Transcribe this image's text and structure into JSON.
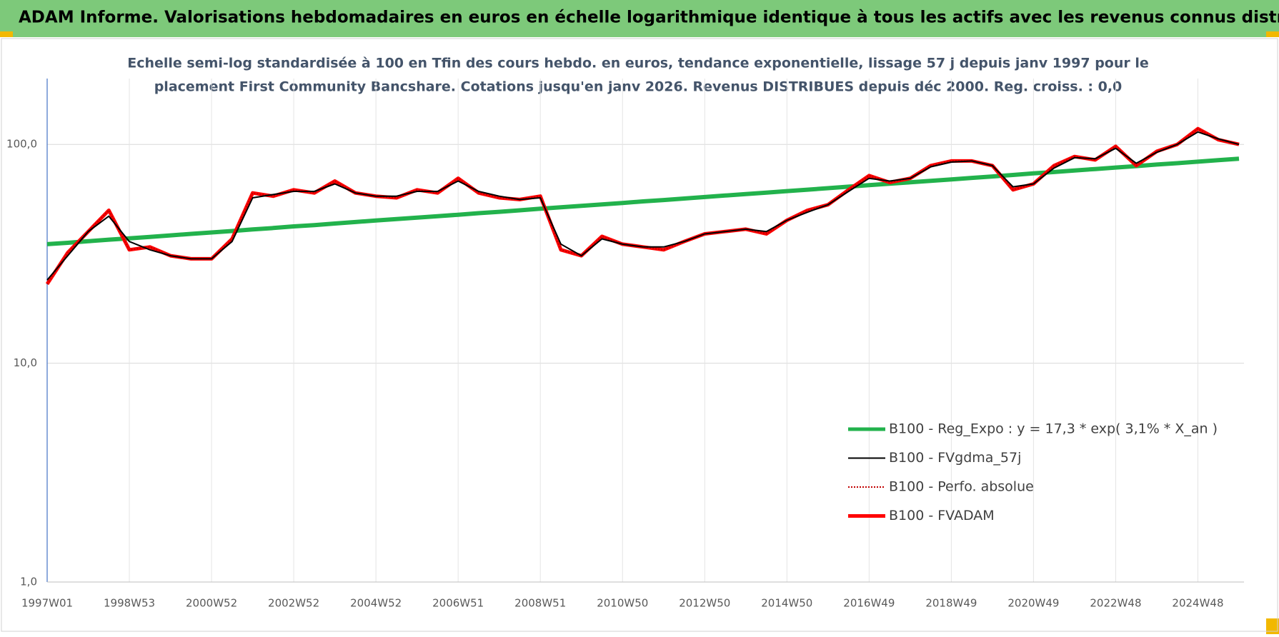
{
  "chart_data": {
    "type": "line",
    "title": "ADAM Informe. Valorisations hebdomadaires en euros en échelle logarithmique identique à tous les actifs avec les revenus connus distribués",
    "subtitle": [
      "Echelle semi-log standardisée à 100 en Tfin des cours hebdo. en euros, tendance exponentielle, lissage 57 j depuis janv 1997 pour le",
      "placement First Community Bancshare. Cotations jusqu'en janv 2026. Revenus DISTRIBUES depuis déc 2000. Reg. croiss. : 0,0"
    ],
    "categories": [
      "1997W01",
      null,
      null,
      null,
      "1998W53",
      null,
      null,
      null,
      "2000W52",
      null,
      null,
      null,
      "2002W52",
      null,
      null,
      null,
      "2004W52",
      null,
      null,
      null,
      "2006W51",
      null,
      null,
      null,
      "2008W51",
      null,
      null,
      null,
      "2010W50",
      null,
      null,
      null,
      "2012W50",
      null,
      null,
      null,
      "2014W50",
      null,
      null,
      null,
      "2016W49",
      null,
      null,
      null,
      "2018W49",
      null,
      null,
      null,
      "2020W49",
      null,
      null,
      null,
      "2022W48",
      null,
      null,
      null,
      "2024W48",
      null,
      null
    ],
    "log": true,
    "ylim": [
      1,
      200
    ],
    "yticks": [
      {
        "value": 1,
        "label": "1,0"
      },
      {
        "value": 10,
        "label": "10,0"
      },
      {
        "value": 100,
        "label": "100,0"
      }
    ],
    "grid": true,
    "legend": "bottom-right",
    "series": [
      {
        "name": "B100 - Reg_Expo : y = 17,3 * exp( 3,1% *  X_an )",
        "color": "#22b24c",
        "width": 6,
        "dash": "solid",
        "values": [
          35.0,
          35.5,
          36.1,
          36.7,
          37.2,
          37.8,
          38.4,
          39.0,
          39.6,
          40.2,
          40.9,
          41.5,
          42.2,
          42.8,
          43.5,
          44.2,
          44.9,
          45.6,
          46.3,
          47.0,
          47.7,
          48.5,
          49.2,
          50.0,
          50.8,
          51.6,
          52.4,
          53.2,
          54.0,
          54.9,
          55.7,
          56.6,
          57.5,
          58.4,
          59.3,
          60.2,
          61.2,
          62.1,
          63.1,
          64.1,
          65.1,
          66.1,
          67.1,
          68.2,
          69.2,
          70.3,
          71.4,
          72.5,
          73.7,
          74.8,
          76.0,
          77.2,
          78.4,
          79.6,
          80.9,
          82.1,
          83.4,
          84.7,
          86.0
        ]
      },
      {
        "name": "B100 - FVgdma_57j",
        "color": "#000000",
        "width": 2,
        "dash": "solid",
        "values": [
          24,
          31,
          40,
          47,
          36,
          33,
          31,
          30,
          30,
          36,
          57,
          59,
          61,
          61,
          66,
          60,
          58,
          58,
          61,
          61,
          68,
          61,
          58,
          56,
          57,
          35,
          31,
          37,
          35,
          34,
          34,
          36,
          39,
          40,
          41,
          40,
          45,
          49,
          53,
          61,
          70,
          68,
          70,
          79,
          83,
          84,
          80,
          64,
          66,
          78,
          87,
          86,
          96,
          82,
          92,
          100,
          114,
          106,
          100
        ]
      },
      {
        "name": "B100 - Perfo. absolue",
        "color": "#c00000",
        "width": 2,
        "dash": "dotted",
        "values": [
          23,
          32,
          40,
          50,
          33,
          34,
          31,
          30,
          30,
          37,
          60,
          58,
          62,
          60,
          68,
          60,
          58,
          57,
          62,
          60,
          70,
          60,
          57,
          56,
          58,
          33,
          31,
          38,
          35,
          34,
          33,
          36,
          39,
          40,
          41,
          39,
          45,
          50,
          53,
          62,
          72,
          67,
          70,
          80,
          84,
          84,
          80,
          62,
          66,
          80,
          88,
          85,
          98,
          80,
          93,
          100,
          118,
          105,
          100
        ]
      },
      {
        "name": "B100 - FVADAM",
        "color": "#ff0000",
        "width": 5,
        "dash": "solid",
        "values": [
          23,
          32,
          40,
          50,
          33,
          34,
          31,
          30,
          30,
          37,
          60,
          58,
          62,
          60,
          68,
          60,
          58,
          57,
          62,
          60,
          70,
          60,
          57,
          56,
          58,
          33,
          31,
          38,
          35,
          34,
          33,
          36,
          39,
          40,
          41,
          39,
          45,
          50,
          53,
          62,
          72,
          67,
          70,
          80,
          84,
          84,
          80,
          62,
          66,
          80,
          88,
          85,
          98,
          80,
          93,
          100,
          118,
          105,
          100
        ]
      }
    ]
  }
}
